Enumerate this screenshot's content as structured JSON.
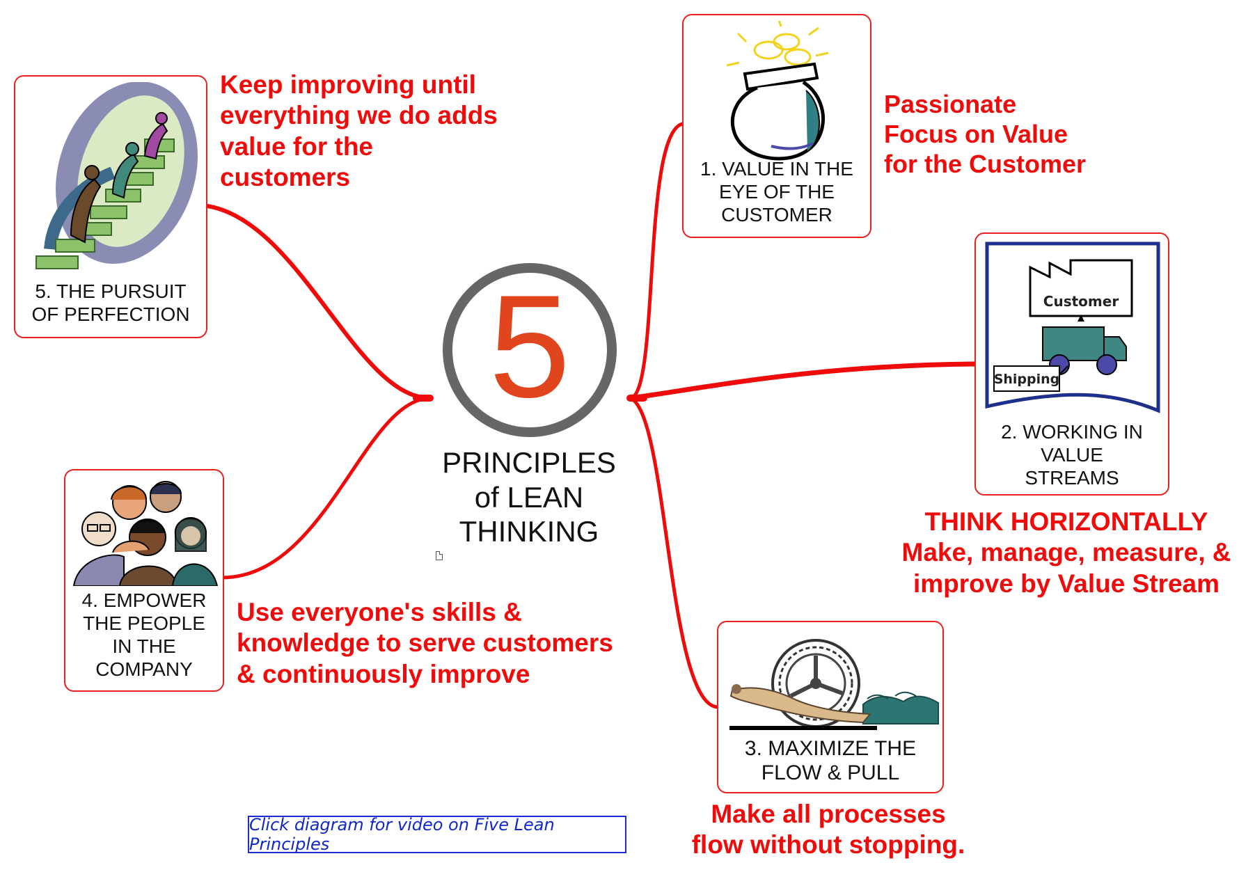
{
  "center": {
    "number": "5",
    "title_lines": [
      "PRINCIPLES",
      "of LEAN",
      "THINKING"
    ]
  },
  "principles": [
    {
      "caption_lines": [
        "1. VALUE IN THE",
        "EYE OF THE",
        "CUSTOMER"
      ],
      "note_lines": [
        "Passionate",
        "Focus on Value",
        "for the Customer"
      ],
      "icon": "money-bag-icon"
    },
    {
      "caption_lines": [
        "2. WORKING IN",
        "VALUE",
        "STREAMS"
      ],
      "note_lines": [
        "THINK HORIZONTALLY",
        "Make, manage, measure, &",
        "improve by Value Stream"
      ],
      "icon": "value-stream-map-icon",
      "diagram_labels": {
        "customer": "Customer",
        "shipping": "Shipping"
      }
    },
    {
      "caption_lines": [
        "3. MAXIMIZE THE",
        "FLOW & PULL"
      ],
      "note_lines": [
        "Make all processes",
        "flow without stopping."
      ],
      "icon": "waterwheel-icon"
    },
    {
      "caption_lines": [
        "4. EMPOWER",
        "THE PEOPLE",
        "IN THE",
        "COMPANY"
      ],
      "note_lines": [
        "Use everyone's skills &",
        "knowledge to serve customers",
        "& continuously improve"
      ],
      "icon": "people-group-icon"
    },
    {
      "caption_lines": [
        "5. THE PURSUIT",
        "OF PERFECTION"
      ],
      "note_lines": [
        "Keep improving until",
        "everything we do adds",
        "value for the",
        "customers"
      ],
      "icon": "stair-climbing-icon"
    }
  ],
  "video_link": {
    "label": "Click diagram for video on Five Lean Principles"
  },
  "colors": {
    "accent_red": "#f00b0b",
    "box_border": "#e8201e",
    "ring_gray": "#666666",
    "number_orange": "#e0451e",
    "link_blue": "#1028c8"
  }
}
